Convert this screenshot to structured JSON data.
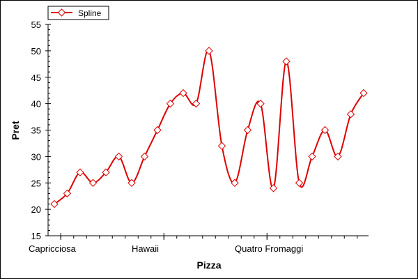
{
  "chart_data": {
    "type": "line",
    "xlabel": "Pizza",
    "ylabel": "Pret",
    "ylim": [
      15,
      55
    ],
    "yticks": [
      15,
      20,
      25,
      30,
      35,
      40,
      45,
      50,
      55
    ],
    "categories": [
      "Capricciosa",
      "",
      "",
      "",
      "",
      "",
      "",
      "",
      "Hawaii",
      "",
      "",
      "",
      "",
      "",
      "",
      "",
      "Quatro Fromaggi",
      "",
      "",
      "",
      "",
      "",
      "",
      "",
      ""
    ],
    "xtick_labels": [
      {
        "index": 0,
        "label": "Capricciosa"
      },
      {
        "index": 8,
        "label": "Hawaii"
      },
      {
        "index": 16,
        "label": "Quatro Fromaggi"
      }
    ],
    "series": [
      {
        "name": "Spline",
        "color": "#dd0000",
        "marker": "diamond",
        "smooth": true,
        "values": [
          21,
          23,
          27,
          25,
          27,
          30,
          25,
          30,
          35,
          40,
          42,
          40,
          50,
          32,
          25,
          35,
          40,
          24,
          48,
          25,
          30,
          35,
          30,
          38,
          42
        ]
      }
    ],
    "legend": {
      "position": "top-left",
      "entries": [
        "Spline"
      ]
    },
    "grid": false
  }
}
